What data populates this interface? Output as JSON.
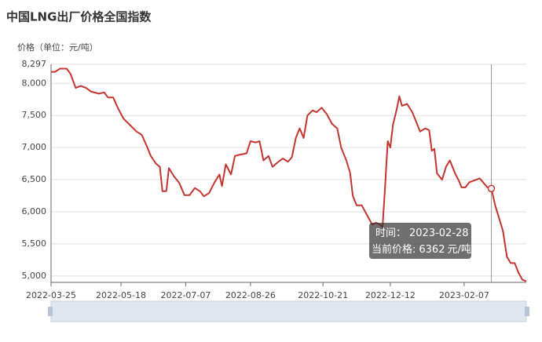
{
  "chart_data": {
    "type": "line",
    "title": "中国LNG出厂价格全国指数",
    "y_label": "价格（单位：元/吨）",
    "x": [
      "2022-03-25",
      "2022-03-28",
      "2022-04-01",
      "2022-04-06",
      "2022-04-09",
      "2022-04-13",
      "2022-04-17",
      "2022-04-21",
      "2022-04-25",
      "2022-05-01",
      "2022-05-05",
      "2022-05-08",
      "2022-05-12",
      "2022-05-16",
      "2022-05-20",
      "2022-05-25",
      "2022-05-30",
      "2022-06-03",
      "2022-06-07",
      "2022-06-10",
      "2022-06-14",
      "2022-06-17",
      "2022-06-19",
      "2022-06-22",
      "2022-06-24",
      "2022-06-28",
      "2022-07-02",
      "2022-07-06",
      "2022-07-10",
      "2022-07-14",
      "2022-07-18",
      "2022-07-21",
      "2022-07-25",
      "2022-07-29",
      "2022-08-02",
      "2022-08-04",
      "2022-08-07",
      "2022-08-11",
      "2022-08-14",
      "2022-08-18",
      "2022-08-23",
      "2022-08-26",
      "2022-08-30",
      "2022-09-02",
      "2022-09-05",
      "2022-09-09",
      "2022-09-12",
      "2022-09-16",
      "2022-09-20",
      "2022-09-24",
      "2022-09-27",
      "2022-09-30",
      "2022-10-03",
      "2022-10-06",
      "2022-10-09",
      "2022-10-13",
      "2022-10-16",
      "2022-10-20",
      "2022-10-24",
      "2022-10-28",
      "2022-11-01",
      "2022-11-04",
      "2022-11-08",
      "2022-11-11",
      "2022-11-13",
      "2022-11-16",
      "2022-11-20",
      "2022-11-24",
      "2022-11-28",
      "2022-12-01",
      "2022-12-04",
      "2022-12-06",
      "2022-12-08",
      "2022-12-10",
      "2022-12-12",
      "2022-12-14",
      "2022-12-17",
      "2022-12-19",
      "2022-12-21",
      "2022-12-25",
      "2022-12-29",
      "2023-01-01",
      "2023-01-04",
      "2023-01-08",
      "2023-01-11",
      "2023-01-13",
      "2023-01-15",
      "2023-01-17",
      "2023-01-21",
      "2023-01-24",
      "2023-01-27",
      "2023-01-31",
      "2023-02-03",
      "2023-02-05",
      "2023-02-08",
      "2023-02-11",
      "2023-02-15",
      "2023-02-19",
      "2023-02-22",
      "2023-02-25",
      "2023-02-28",
      "2023-03-03",
      "2023-03-06",
      "2023-03-09",
      "2023-03-12",
      "2023-03-15",
      "2023-03-18",
      "2023-03-21",
      "2023-03-24",
      "2023-03-27"
    ],
    "series": [
      {
        "name": "价格",
        "color": "#c23531",
        "values": [
          8180,
          8180,
          8230,
          8230,
          8150,
          7930,
          7960,
          7930,
          7870,
          7840,
          7860,
          7780,
          7780,
          7600,
          7450,
          7350,
          7250,
          7200,
          7020,
          6870,
          6750,
          6700,
          6320,
          6320,
          6680,
          6550,
          6450,
          6260,
          6260,
          6370,
          6320,
          6240,
          6290,
          6450,
          6580,
          6400,
          6740,
          6580,
          6870,
          6890,
          6910,
          7100,
          7080,
          7100,
          6800,
          6870,
          6700,
          6770,
          6830,
          6780,
          6850,
          7150,
          7300,
          7150,
          7500,
          7580,
          7550,
          7620,
          7520,
          7370,
          7300,
          7000,
          6800,
          6600,
          6250,
          6100,
          6100,
          5950,
          5800,
          5830,
          5800,
          5760,
          6400,
          7100,
          7000,
          7350,
          7600,
          7800,
          7650,
          7680,
          7550,
          7400,
          7250,
          7300,
          7270,
          6950,
          6980,
          6600,
          6500,
          6700,
          6800,
          6600,
          6480,
          6380,
          6380,
          6460,
          6490,
          6520,
          6450,
          6380,
          6362,
          6100,
          5900,
          5700,
          5300,
          5200,
          5200,
          5050,
          4940,
          4920
        ]
      }
    ],
    "xlim": [
      "2022-03-25",
      "2023-03-27"
    ],
    "xticks": [
      "2022-03-25",
      "2022-05-18",
      "2022-07-07",
      "2022-08-26",
      "2022-10-21",
      "2022-12-12",
      "2023-02-07"
    ],
    "ylim": [
      4900,
      8297
    ],
    "yticks": [
      {
        "value": 5000,
        "label": "5,000"
      },
      {
        "value": 5500,
        "label": "5,500"
      },
      {
        "value": 6000,
        "label": "6,000"
      },
      {
        "value": 6500,
        "label": "6,500"
      },
      {
        "value": 7000,
        "label": "7,000"
      },
      {
        "value": 7500,
        "label": "7,500"
      },
      {
        "value": 8000,
        "label": "8,000"
      },
      {
        "value": 8297,
        "label": "8,297"
      }
    ],
    "grid": true,
    "tooltip": {
      "time_label": "时间：",
      "x": "2023-02-28",
      "price_label": "当前价格:",
      "value": 6362,
      "unit": "元/吨"
    }
  }
}
